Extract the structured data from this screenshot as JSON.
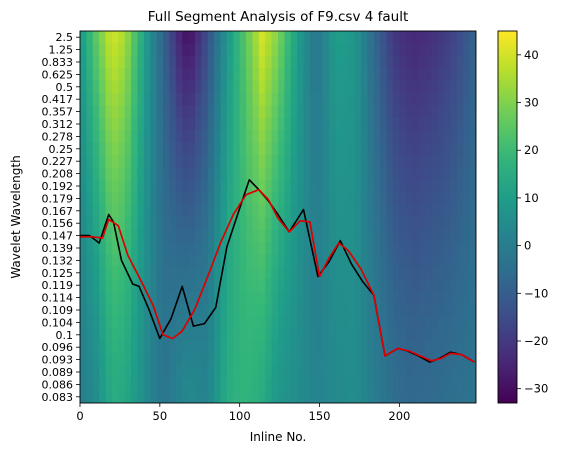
{
  "chart_data": {
    "type": "heatmap",
    "title": "Full Segment Analysis of F9.csv 4 fault",
    "xlabel": "Inline No.",
    "ylabel": "Wavelet Wavelength",
    "xlim": [
      0,
      248
    ],
    "x_ticks": [
      "0",
      "50",
      "100",
      "150",
      "200"
    ],
    "x_tick_values": [
      0,
      50,
      100,
      150,
      200
    ],
    "y_tick_labels": [
      "2.5",
      "1.25",
      "0.833",
      "0.625",
      "0.5",
      "0.417",
      "0.357",
      "0.312",
      "0.278",
      "0.25",
      "0.227",
      "0.208",
      "0.192",
      "0.179",
      "0.167",
      "0.156",
      "0.147",
      "0.139",
      "0.132",
      "0.125",
      "0.119",
      "0.114",
      "0.109",
      "0.104",
      "0.1",
      "0.096",
      "0.093",
      "0.089",
      "0.086",
      "0.083"
    ],
    "colorbar": {
      "colormap": "viridis",
      "range": [
        -33,
        45
      ],
      "ticks": [
        "40",
        "30",
        "20",
        "10",
        "0",
        "−10",
        "−20",
        "−30"
      ],
      "tick_values": [
        40,
        30,
        20,
        10,
        0,
        -10,
        -20,
        -30
      ]
    },
    "heatmap_columns": {
      "x": [
        0,
        10,
        20,
        28,
        40,
        52,
        62,
        68,
        80,
        92,
        104,
        114,
        124,
        136,
        148,
        160,
        172,
        184,
        196,
        208,
        220,
        232,
        248
      ],
      "top_values": [
        8,
        25,
        40,
        35,
        12,
        -8,
        -24,
        -30,
        -14,
        8,
        25,
        40,
        30,
        10,
        -3,
        10,
        8,
        -6,
        -20,
        -24,
        -22,
        -18,
        -8
      ],
      "bottom_values": [
        0,
        5,
        15,
        14,
        5,
        -3,
        2,
        4,
        2,
        15,
        18,
        15,
        8,
        5,
        2,
        4,
        5,
        0,
        -5,
        -7,
        -6,
        -5,
        -3
      ]
    },
    "series": [
      {
        "color": "#000000",
        "x": [
          0,
          6,
          12,
          18,
          21,
          26,
          33,
          37,
          43,
          50,
          57,
          64,
          71,
          78,
          85,
          92,
          100,
          106,
          112,
          118,
          124,
          131,
          140,
          149,
          156,
          163,
          170,
          177,
          184,
          191,
          199,
          205,
          212,
          219,
          225,
          232,
          239,
          247
        ],
        "y": [
          13.5,
          13.5,
          12.9,
          15.2,
          14.6,
          11.5,
          9.6,
          9.4,
          7.6,
          5.2,
          6.8,
          9.4,
          6.2,
          6.4,
          7.7,
          12.6,
          15.7,
          18.0,
          17.2,
          16.3,
          15.2,
          13.8,
          15.6,
          10.2,
          11.4,
          13.1,
          11.2,
          9.8,
          8.7,
          3.8,
          4.4,
          4.2,
          3.8,
          3.3,
          3.6,
          4.1,
          3.9,
          3.3
        ]
      },
      {
        "color": "#dd0000",
        "x": [
          0,
          8,
          14,
          18,
          24,
          30,
          38,
          46,
          52,
          58,
          64,
          72,
          80,
          88,
          96,
          104,
          112,
          118,
          124,
          131,
          138,
          144,
          150,
          156,
          162,
          168,
          176,
          184,
          191,
          199,
          206,
          213,
          220,
          226,
          232,
          239,
          247
        ],
        "y": [
          13.4,
          13.4,
          13.3,
          14.8,
          14.3,
          11.9,
          9.9,
          7.8,
          5.5,
          5.2,
          5.8,
          7.6,
          10.2,
          12.9,
          15.2,
          16.8,
          17.2,
          16.4,
          14.9,
          13.8,
          14.7,
          14.6,
          10.2,
          11.7,
          12.9,
          12.3,
          10.8,
          8.7,
          3.8,
          4.4,
          4.2,
          3.8,
          3.4,
          3.6,
          4.0,
          3.9,
          3.3
        ]
      }
    ]
  }
}
